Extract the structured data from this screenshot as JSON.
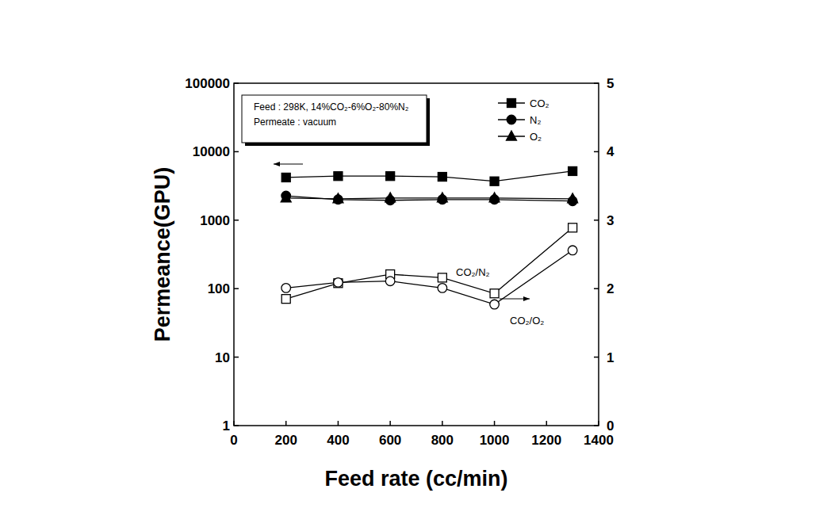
{
  "chart_data": {
    "type": "line",
    "x_label": "Feed rate (cc/min)",
    "y_label": "Permeance(GPU)",
    "annotations": [
      "Feed : 298K, 14%CO₂-6%O₂-80%N₂",
      "Permeate : vacuum"
    ],
    "x": [
      200,
      400,
      600,
      800,
      1000,
      1300
    ],
    "series": [
      {
        "name": "CO₂",
        "color": "#000000",
        "marker": "square",
        "values": [
          4200,
          4400,
          4400,
          4300,
          3700,
          5200
        ]
      },
      {
        "name": "N₂",
        "color": "#000000",
        "marker": "circle",
        "values": [
          2270,
          2000,
          1950,
          2000,
          2000,
          1900
        ]
      },
      {
        "name": "O₂",
        "color": "#000000",
        "marker": "triangle",
        "values": [
          2100,
          2050,
          2100,
          2100,
          2100,
          2050
        ]
      },
      {
        "name": "CO₂/N₂",
        "color": "#000000",
        "marker": "open-square",
        "axis": "y2",
        "values": [
          1.85,
          2.08,
          2.21,
          2.16,
          1.93,
          2.89
        ]
      },
      {
        "name": "CO₂/O₂",
        "color": "#000000",
        "marker": "open-circle",
        "axis": "y2",
        "values": [
          2.01,
          2.09,
          2.11,
          2.01,
          1.77,
          2.56
        ]
      }
    ],
    "xlim": [
      0,
      1400
    ],
    "xticks": [
      0,
      200,
      400,
      600,
      800,
      1000,
      1200,
      1400
    ],
    "ylim": [
      1,
      100000
    ],
    "yticks": [
      1,
      10,
      100,
      1000,
      10000,
      100000
    ],
    "y2lim": [
      0,
      5
    ],
    "y2ticks": [
      0,
      1,
      2,
      3,
      4,
      5
    ],
    "log": "y",
    "grid": false,
    "legend": "top-right"
  }
}
